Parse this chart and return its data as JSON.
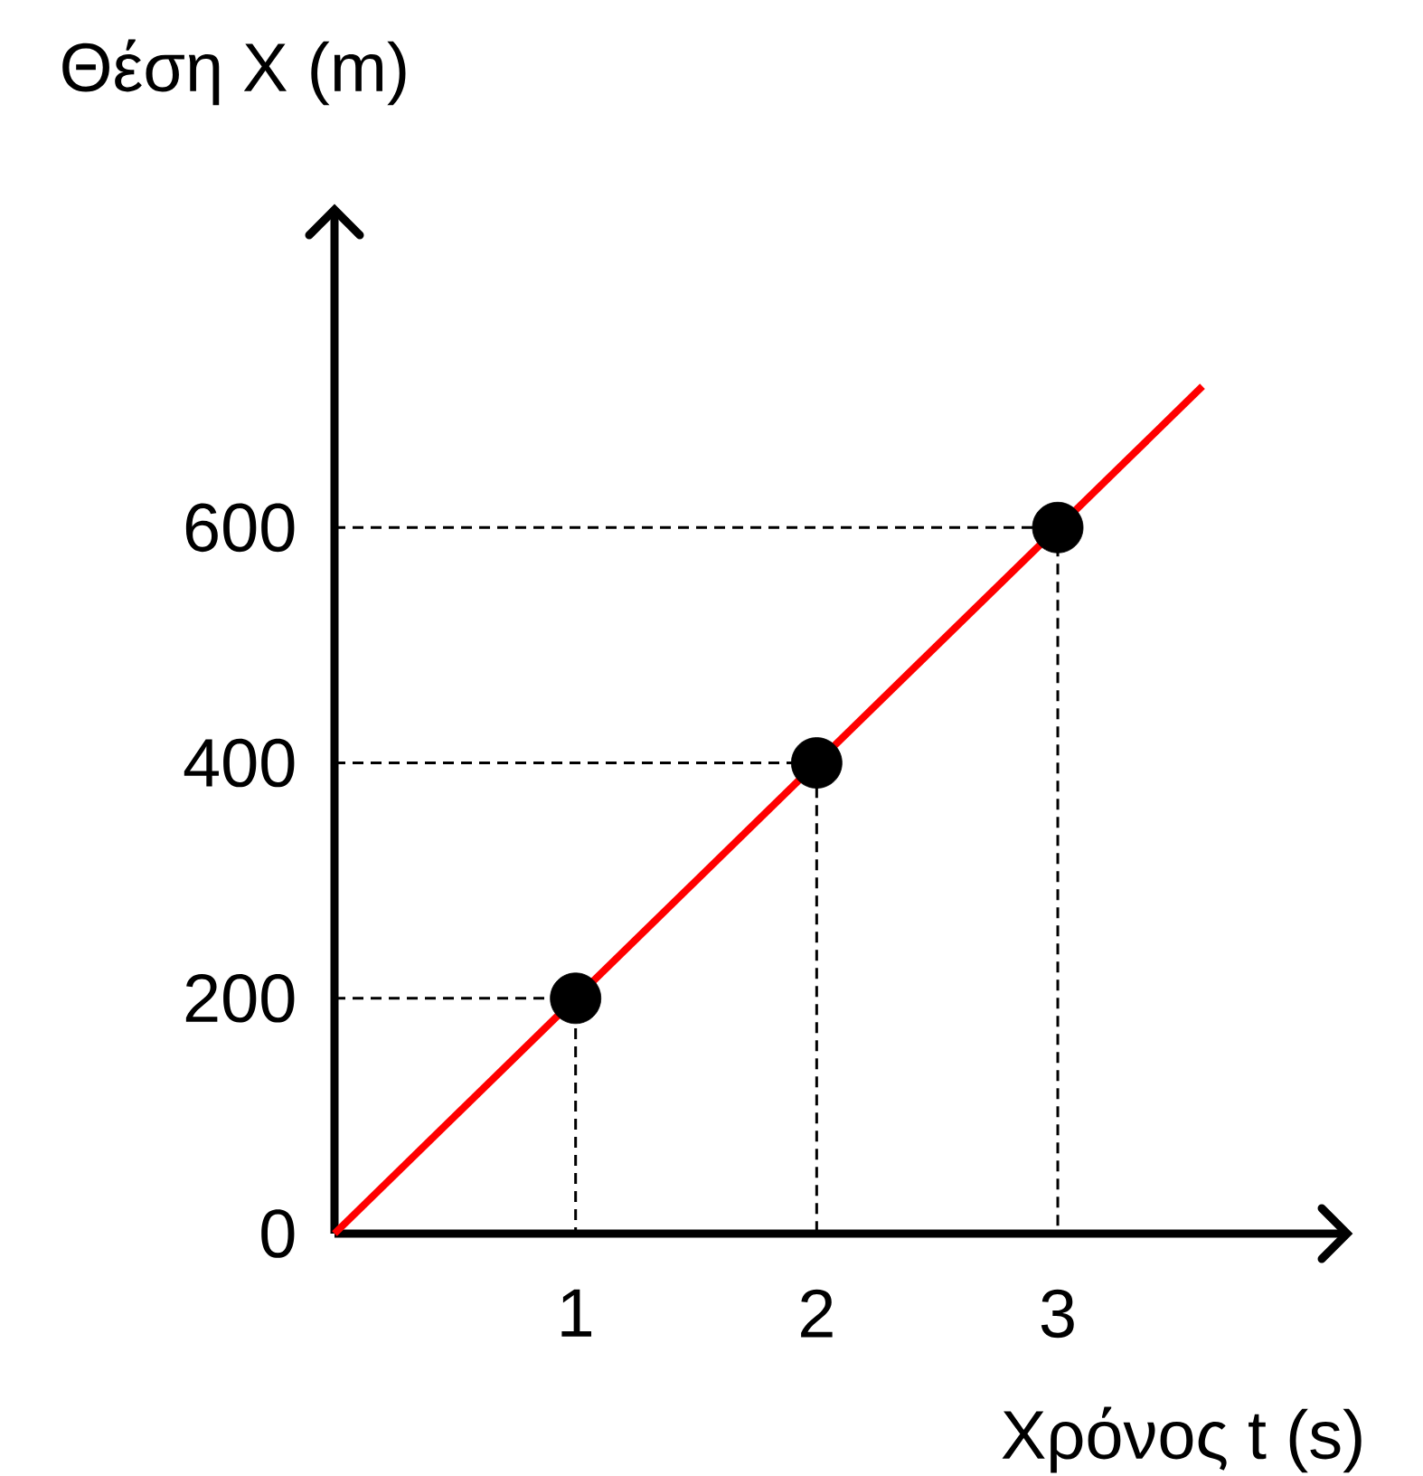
{
  "chart_data": {
    "type": "line",
    "xlabel": "Χρόνος t (s)",
    "ylabel": "Θέση X (m)",
    "xlim": [
      0,
      4.2
    ],
    "ylim": [
      0,
      870
    ],
    "xticks": [
      1,
      2,
      3
    ],
    "yticks": [
      0,
      200,
      400,
      600
    ],
    "series": [
      {
        "color": "#000000",
        "line_style": "dashed",
        "marker": "none",
        "x": [
          0,
          1,
          1
        ],
        "values": [
          200,
          200,
          0
        ]
      },
      {
        "color": "#000000",
        "line_style": "dashed",
        "marker": "none",
        "x": [
          0,
          2,
          2
        ],
        "values": [
          400,
          400,
          0
        ]
      },
      {
        "color": "#000000",
        "line_style": "dashed",
        "marker": "none",
        "x": [
          0,
          3,
          3
        ],
        "values": [
          600,
          600,
          0
        ]
      },
      {
        "color": "#ff0000",
        "line_style": "solid",
        "marker": "none",
        "x": [
          0,
          3.6
        ],
        "values": [
          0,
          720
        ]
      },
      {
        "type": "scatter",
        "color": "#000000",
        "marker": "circle",
        "x": [
          1,
          2,
          3
        ],
        "values": [
          200,
          400,
          600
        ]
      }
    ]
  }
}
